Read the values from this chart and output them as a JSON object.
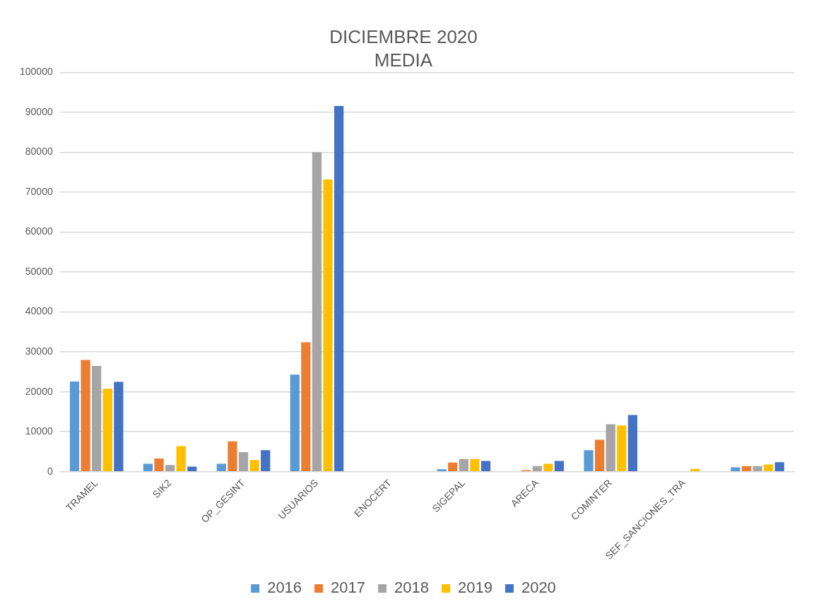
{
  "chart_data": {
    "type": "bar",
    "title": "DICIEMBRE 2020",
    "subtitle": "MEDIA",
    "categories": [
      "TRAMEL",
      "SIK2",
      "OP_GESINT",
      "USUARIOS",
      "ENOCERT",
      "SIGEPAL",
      "ARECA",
      "COMINTER",
      "SEF_SANCIONES_TRA",
      null
    ],
    "series": [
      {
        "name": "2016",
        "color": "#5b9bd5",
        "values": [
          22600,
          2000,
          2000,
          24300,
          0,
          600,
          0,
          5400,
          0,
          1100
        ]
      },
      {
        "name": "2017",
        "color": "#ed7d31",
        "values": [
          28000,
          3300,
          7600,
          32400,
          0,
          2300,
          400,
          8000,
          0,
          1400
        ]
      },
      {
        "name": "2018",
        "color": "#a5a5a5",
        "values": [
          26500,
          1700,
          4900,
          80000,
          0,
          3200,
          1400,
          11900,
          0,
          1400
        ]
      },
      {
        "name": "2019",
        "color": "#ffc000",
        "values": [
          20800,
          6400,
          2900,
          73200,
          0,
          3200,
          2000,
          11600,
          700,
          1800
        ]
      },
      {
        "name": "2020",
        "color": "#4472c4",
        "values": [
          22500,
          1300,
          5400,
          91600,
          0,
          2700,
          2700,
          14200,
          0,
          2400
        ]
      }
    ],
    "ylim": [
      0,
      100000
    ],
    "yticks": [
      0,
      10000,
      20000,
      30000,
      40000,
      50000,
      60000,
      70000,
      80000,
      90000,
      100000
    ],
    "grid": "y",
    "legend": "bottom"
  }
}
